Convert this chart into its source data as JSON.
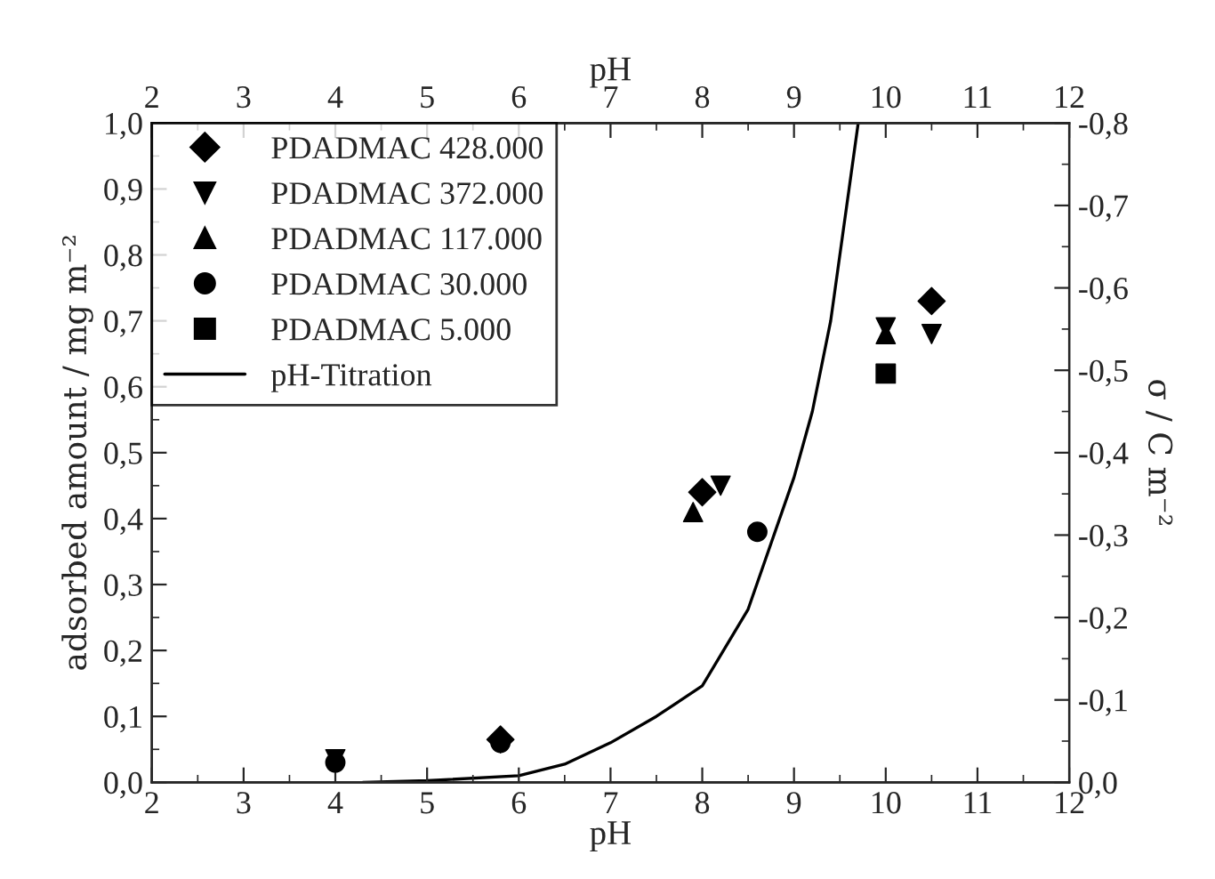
{
  "chart_data": {
    "type": "scatter",
    "xlabel": "pH",
    "x2label": "pH",
    "ylabel": "adsorbed amount / mg m⁻²",
    "y2label": "σ / C m⁻²",
    "xlim": [
      2,
      12
    ],
    "xticks": [
      2,
      3,
      4,
      5,
      6,
      7,
      8,
      9,
      10,
      11,
      12
    ],
    "x2lim": [
      2,
      12
    ],
    "x2ticks": [
      2,
      3,
      4,
      5,
      6,
      7,
      8,
      9,
      10,
      11,
      12
    ],
    "ylim": [
      0,
      1.0
    ],
    "yticks": [
      {
        "value": 0,
        "label": "0,0"
      },
      {
        "value": 0.1,
        "label": "0,1"
      },
      {
        "value": 0.2,
        "label": "0,2"
      },
      {
        "value": 0.3,
        "label": "0,3"
      },
      {
        "value": 0.4,
        "label": "0,4"
      },
      {
        "value": 0.5,
        "label": "0,5"
      },
      {
        "value": 0.6,
        "label": "0,6"
      },
      {
        "value": 0.7,
        "label": "0,7"
      },
      {
        "value": 0.8,
        "label": "0,8"
      },
      {
        "value": 0.9,
        "label": "0,9"
      },
      {
        "value": 1.0,
        "label": "1,0"
      }
    ],
    "y2lim": [
      0,
      -0.8
    ],
    "y2ticks": [
      {
        "value": 0,
        "label": "0,0"
      },
      {
        "value": -0.1,
        "label": "-0,1"
      },
      {
        "value": -0.2,
        "label": "-0,2"
      },
      {
        "value": -0.3,
        "label": "-0,3"
      },
      {
        "value": -0.4,
        "label": "-0,4"
      },
      {
        "value": -0.5,
        "label": "-0,5"
      },
      {
        "value": -0.6,
        "label": "-0,6"
      },
      {
        "value": -0.7,
        "label": "-0,7"
      },
      {
        "value": -0.8,
        "label": "-0,8"
      }
    ],
    "legend": "top left",
    "grid": false,
    "series": [
      {
        "name": "PDADMAC 428.000",
        "color": "#000000",
        "marker": "diamond",
        "x": [
          5.8,
          8.0,
          10.5
        ],
        "values": [
          0.065,
          0.44,
          0.73
        ]
      },
      {
        "name": "PDADMAC 372.000",
        "color": "#000000",
        "marker": "triangle_down",
        "x": [
          4.0,
          8.2,
          10.0,
          10.5
        ],
        "values": [
          0.035,
          0.45,
          0.69,
          0.68
        ]
      },
      {
        "name": "PDADMAC 117.000",
        "color": "#000000",
        "marker": "triangle",
        "x": [
          7.9,
          10.0
        ],
        "values": [
          0.41,
          0.68
        ]
      },
      {
        "name": "PDADMAC 30.000",
        "color": "#000000",
        "marker": "circle",
        "x": [
          4.0,
          5.8,
          8.6
        ],
        "values": [
          0.03,
          0.06,
          0.38
        ]
      },
      {
        "name": "PDADMAC 5.000",
        "color": "#000000",
        "marker": "square",
        "x": [
          10.0
        ],
        "values": [
          0.62
        ]
      },
      {
        "name": "pH-Titration",
        "color": "#000000",
        "type": "line",
        "axis": "y2",
        "marker": "none",
        "line_style": "solid",
        "x": [
          4.3,
          5.0,
          6.0,
          6.5,
          7.0,
          7.5,
          8.0,
          8.5,
          9.0,
          9.2,
          9.4,
          9.6,
          9.7
        ],
        "values": [
          0.0,
          -0.002,
          -0.008,
          -0.022,
          -0.048,
          -0.08,
          -0.117,
          -0.21,
          -0.37,
          -0.45,
          -0.56,
          -0.72,
          -0.8
        ]
      }
    ]
  }
}
